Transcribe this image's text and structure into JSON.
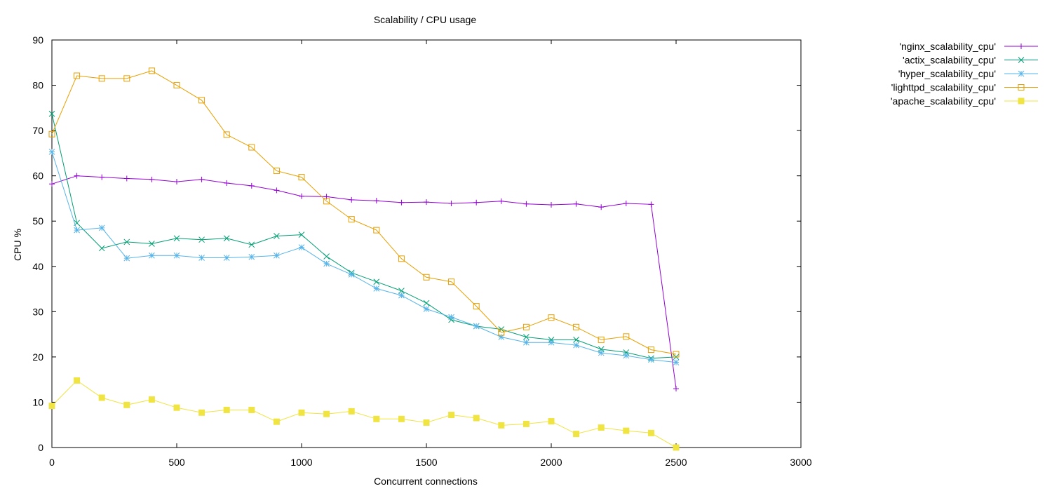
{
  "chart_data": {
    "type": "line",
    "title": "Scalability / CPU usage",
    "xlabel": "Concurrent connections",
    "ylabel": "CPU %",
    "xlim": [
      0,
      3000
    ],
    "ylim": [
      0,
      90
    ],
    "xticks": [
      0,
      500,
      1000,
      1500,
      2000,
      2500,
      3000
    ],
    "yticks": [
      0,
      10,
      20,
      30,
      40,
      50,
      60,
      70,
      80,
      90
    ],
    "grid": false,
    "legend_position": "top-right-outside",
    "x": [
      0,
      100,
      200,
      300,
      400,
      500,
      600,
      700,
      800,
      900,
      1000,
      1100,
      1200,
      1300,
      1400,
      1500,
      1600,
      1700,
      1800,
      1900,
      2000,
      2100,
      2200,
      2300,
      2400,
      2500
    ],
    "series": [
      {
        "name": "'nginx_scalability_cpu'",
        "color": "#9400d3",
        "marker": "plus",
        "values": [
          58.2,
          60.0,
          59.7,
          59.4,
          59.2,
          58.7,
          59.2,
          58.4,
          57.8,
          56.8,
          55.5,
          55.4,
          54.7,
          54.5,
          54.1,
          54.2,
          53.9,
          54.1,
          54.4,
          53.8,
          53.6,
          53.8,
          53.1,
          53.9,
          53.7,
          13.0
        ]
      },
      {
        "name": "'actix_scalability_cpu'",
        "color": "#009e73",
        "marker": "cross",
        "values": [
          73.7,
          49.6,
          44.0,
          45.4,
          45.0,
          46.2,
          45.9,
          46.2,
          44.8,
          46.7,
          47.0,
          42.2,
          38.6,
          36.6,
          34.6,
          31.9,
          28.2,
          26.8,
          26.1,
          24.4,
          23.8,
          23.8,
          21.7,
          21.0,
          19.7,
          20.0
        ]
      },
      {
        "name": "'hyper_scalability_cpu'",
        "color": "#56b4e9",
        "marker": "star",
        "values": [
          65.3,
          48.0,
          48.5,
          41.8,
          42.4,
          42.4,
          41.9,
          41.9,
          42.1,
          42.4,
          44.2,
          40.6,
          38.2,
          35.1,
          33.6,
          30.6,
          28.8,
          26.8,
          24.4,
          23.2,
          23.2,
          22.6,
          20.9,
          20.3,
          19.4,
          18.8
        ]
      },
      {
        "name": "'lighttpd_scalability_cpu'",
        "color": "#e69f00",
        "marker": "open-square",
        "values": [
          69.2,
          82.1,
          81.5,
          81.5,
          83.2,
          80.0,
          76.7,
          69.1,
          66.3,
          61.1,
          59.7,
          54.4,
          50.4,
          48.0,
          41.7,
          37.6,
          36.6,
          31.2,
          25.4,
          26.6,
          28.7,
          26.6,
          23.8,
          24.5,
          21.6,
          20.6
        ]
      },
      {
        "name": "'apache_scalability_cpu'",
        "color": "#f0e442",
        "marker": "filled-square",
        "values": [
          9.2,
          14.8,
          11.0,
          9.4,
          10.6,
          8.8,
          7.7,
          8.3,
          8.3,
          5.7,
          7.7,
          7.4,
          8.0,
          6.3,
          6.3,
          5.5,
          7.2,
          6.5,
          4.9,
          5.2,
          5.8,
          3.0,
          4.4,
          3.7,
          3.2,
          0.0
        ]
      }
    ]
  }
}
